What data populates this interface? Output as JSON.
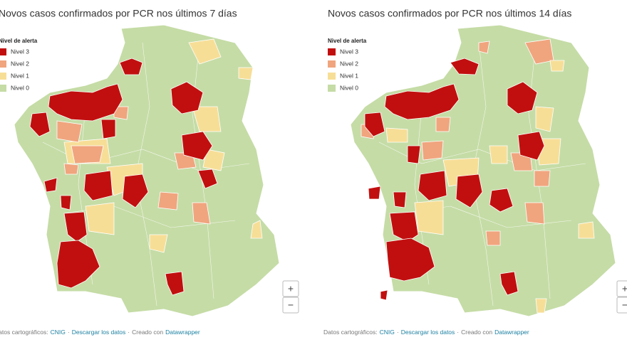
{
  "panels": [
    {
      "title": "Novos casos confirmados por PCR nos últimos 7 días",
      "legend": {
        "title": "Nivel de alerta",
        "items": [
          {
            "label": "Nivel 3",
            "color": "#c10f0f"
          },
          {
            "label": "Nivel 2",
            "color": "#f0a57e"
          },
          {
            "label": "Nivel 1",
            "color": "#f7de97"
          },
          {
            "label": "Nivel 0",
            "color": "#c5dca6"
          }
        ]
      },
      "zoom": [
        "+",
        "−"
      ],
      "footer": {
        "source_label": "Datos cartográficos:",
        "source_link": "CNIG",
        "separator": "·",
        "download": "Descargar los datos",
        "credit": "Creado con",
        "credit_link": "Datawrapper"
      }
    },
    {
      "title": "Novos casos confirmados por PCR nos últimos 14 días",
      "legend": {
        "title": "Nivel de alerta",
        "items": [
          {
            "label": "Nivel 3",
            "color": "#c10f0f"
          },
          {
            "label": "Nivel 2",
            "color": "#f0a57e"
          },
          {
            "label": "Nivel 1",
            "color": "#f7de97"
          },
          {
            "label": "Nivel 0",
            "color": "#c5dca6"
          }
        ]
      },
      "zoom": [
        "+",
        "−"
      ],
      "footer": {
        "source_label": "Datos cartográficos:",
        "source_link": "CNIG",
        "separator": "·",
        "download": "Descargar los datos",
        "credit": "Creado con",
        "credit_link": "Datawrapper"
      }
    }
  ]
}
